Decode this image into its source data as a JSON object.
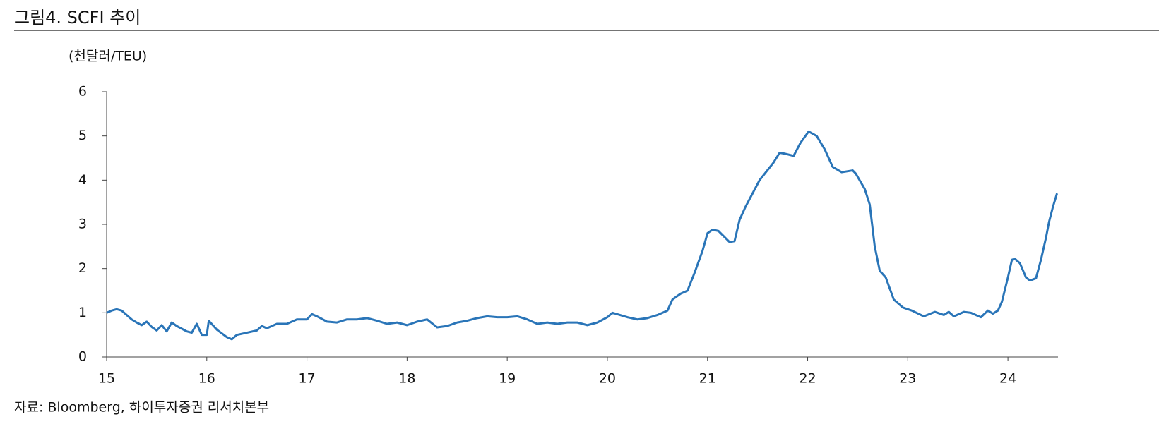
{
  "chart_data": {
    "type": "line",
    "title": "그림4. SCFI 추이",
    "y_unit": "(천달러/TEU)",
    "source": "자료: Bloomberg, 하이투자증권 리서치본부",
    "x": [
      15.0,
      15.05,
      15.1,
      15.15,
      15.2,
      15.25,
      15.3,
      15.35,
      15.4,
      15.45,
      15.5,
      15.55,
      15.6,
      15.65,
      15.7,
      15.8,
      15.85,
      15.9,
      15.95,
      16.0,
      16.02,
      16.1,
      16.2,
      16.25,
      16.3,
      16.4,
      16.5,
      16.55,
      16.6,
      16.7,
      16.8,
      16.9,
      17.0,
      17.05,
      17.1,
      17.2,
      17.3,
      17.4,
      17.5,
      17.6,
      17.7,
      17.8,
      17.9,
      18.0,
      18.1,
      18.2,
      18.3,
      18.4,
      18.5,
      18.6,
      18.7,
      18.8,
      18.9,
      19.0,
      19.1,
      19.2,
      19.3,
      19.4,
      19.5,
      19.6,
      19.7,
      19.8,
      19.9,
      20.0,
      20.05,
      20.2,
      20.3,
      20.4,
      20.5,
      20.6,
      20.65,
      20.73,
      20.8,
      20.87,
      20.95,
      21.0,
      21.05,
      21.11,
      21.22,
      21.27,
      21.32,
      21.38,
      21.45,
      21.52,
      21.59,
      21.66,
      21.72,
      21.77,
      21.86,
      21.93,
      22.01,
      22.09,
      22.17,
      22.25,
      22.34,
      22.45,
      22.48,
      22.57,
      22.62,
      22.67,
      22.72,
      22.78,
      22.86,
      22.95,
      23.04,
      23.16,
      23.27,
      23.36,
      23.41,
      23.46,
      23.56,
      23.63,
      23.73,
      23.8,
      23.85,
      23.9,
      23.94,
      24.0,
      24.04,
      24.07,
      24.12,
      24.18,
      24.22,
      24.28,
      24.33,
      24.38,
      24.41,
      24.45,
      24.49
    ],
    "series": [
      {
        "name": "SCFI",
        "color": "#2a75b8",
        "values": [
          1.0,
          1.05,
          1.08,
          1.05,
          0.95,
          0.85,
          0.78,
          0.72,
          0.8,
          0.68,
          0.6,
          0.72,
          0.58,
          0.78,
          0.7,
          0.58,
          0.55,
          0.75,
          0.5,
          0.5,
          0.82,
          0.62,
          0.45,
          0.4,
          0.5,
          0.55,
          0.6,
          0.7,
          0.65,
          0.75,
          0.75,
          0.85,
          0.85,
          0.97,
          0.92,
          0.8,
          0.78,
          0.85,
          0.85,
          0.88,
          0.82,
          0.75,
          0.78,
          0.72,
          0.8,
          0.85,
          0.67,
          0.7,
          0.78,
          0.82,
          0.88,
          0.92,
          0.9,
          0.9,
          0.92,
          0.85,
          0.75,
          0.78,
          0.75,
          0.78,
          0.78,
          0.72,
          0.78,
          0.9,
          1.0,
          0.9,
          0.85,
          0.88,
          0.95,
          1.05,
          1.3,
          1.43,
          1.5,
          1.9,
          2.4,
          2.8,
          2.88,
          2.85,
          2.6,
          2.62,
          3.1,
          3.4,
          3.7,
          4.0,
          4.2,
          4.4,
          4.62,
          4.6,
          4.55,
          4.85,
          5.1,
          5.0,
          4.7,
          4.3,
          4.18,
          4.22,
          4.15,
          3.8,
          3.45,
          2.5,
          1.95,
          1.8,
          1.3,
          1.12,
          1.05,
          0.92,
          1.02,
          0.95,
          1.02,
          0.92,
          1.02,
          1.0,
          0.9,
          1.05,
          0.98,
          1.05,
          1.25,
          1.8,
          2.2,
          2.22,
          2.12,
          1.8,
          1.73,
          1.78,
          2.2,
          2.7,
          3.05,
          3.4,
          3.7
        ]
      }
    ],
    "xlim": [
      15,
      24.5
    ],
    "xticks": [
      15,
      16,
      17,
      18,
      19,
      20,
      21,
      22,
      23,
      24
    ],
    "ylim": [
      0,
      6
    ],
    "yticks": [
      0,
      1,
      2,
      3,
      4,
      5,
      6
    ],
    "grid": false
  }
}
